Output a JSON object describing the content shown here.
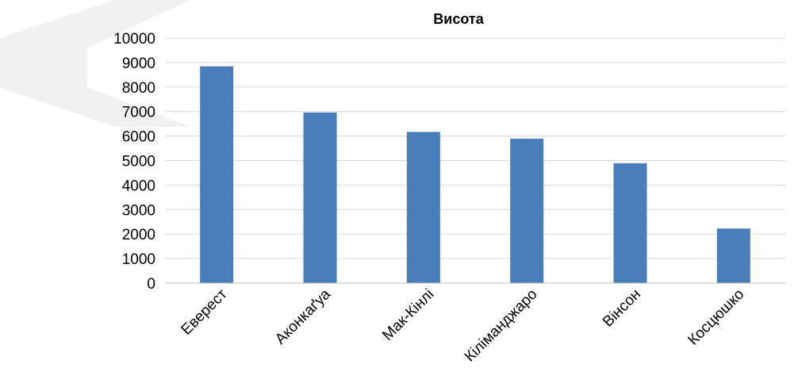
{
  "chart_data": {
    "type": "bar",
    "title": "Висота",
    "xlabel": "",
    "ylabel": "",
    "categories": [
      "Еверест",
      "Аконкаґуа",
      "Мак-Кінлі",
      "Кіліманджаро",
      "Вінсон",
      "Косцюшко"
    ],
    "values": [
      8848,
      6962,
      6168,
      5895,
      4892,
      2228
    ],
    "ylim": [
      0,
      10000
    ],
    "y_ticks": [
      0,
      1000,
      2000,
      3000,
      4000,
      5000,
      6000,
      7000,
      8000,
      9000,
      10000
    ],
    "grid": true,
    "legend": "none",
    "bar_color": "#4a7ebb",
    "grid_color": "#d9d9d9",
    "decoration_color": "#e6e6e6"
  }
}
